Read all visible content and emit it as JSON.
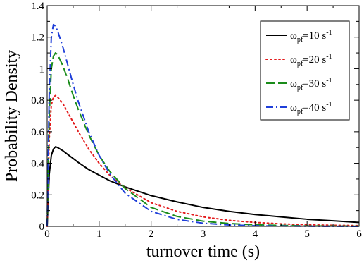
{
  "chart_data": {
    "type": "line",
    "title": "",
    "xlabel": "turnover time (s)",
    "ylabel": "Probability Density",
    "xlim": [
      0,
      6
    ],
    "ylim": [
      0,
      1.4
    ],
    "xticks": [
      0,
      1,
      2,
      3,
      4,
      5,
      6
    ],
    "xtick_labels": [
      "0",
      "1",
      "2",
      "3",
      "4",
      "5",
      "6"
    ],
    "yticks": [
      0,
      0.2,
      0.4,
      0.6,
      0.8,
      1.0,
      1.2,
      1.4
    ],
    "ytick_labels": [
      "0",
      "0.2",
      "0.4",
      "0.6",
      "0.8",
      "1",
      "1.2",
      "1.4"
    ],
    "grid": false,
    "legend_position": "top-right",
    "series": [
      {
        "name": "ω_pf=10 s^-1",
        "legend": {
          "base": "ω",
          "sub": "pf",
          "rest": "=10 s",
          "sup": "-1"
        },
        "color": "#000000",
        "dash": "solid",
        "x": [
          0,
          0.04,
          0.08,
          0.12,
          0.16,
          0.2,
          0.3,
          0.4,
          0.5,
          0.6,
          0.8,
          1.0,
          1.2,
          1.5,
          2.0,
          2.5,
          3.0,
          3.5,
          4.0,
          4.5,
          5.0,
          5.5,
          6.0
        ],
        "y": [
          0,
          0.33,
          0.45,
          0.49,
          0.505,
          0.5,
          0.48,
          0.455,
          0.43,
          0.405,
          0.36,
          0.325,
          0.29,
          0.25,
          0.195,
          0.155,
          0.12,
          0.095,
          0.075,
          0.06,
          0.045,
          0.035,
          0.025
        ]
      },
      {
        "name": "ω_pf=20 s^-1",
        "legend": {
          "base": "ω",
          "sub": "pf",
          "rest": "=20 s",
          "sup": "-1"
        },
        "color": "#e31a1c",
        "dash": "dotted",
        "x": [
          0,
          0.04,
          0.08,
          0.12,
          0.16,
          0.2,
          0.3,
          0.4,
          0.5,
          0.6,
          0.8,
          1.0,
          1.2,
          1.5,
          2.0,
          2.5,
          3.0,
          3.5,
          4.0,
          4.5,
          5.0,
          5.5,
          6.0
        ],
        "y": [
          0,
          0.55,
          0.77,
          0.82,
          0.83,
          0.82,
          0.78,
          0.72,
          0.66,
          0.6,
          0.49,
          0.4,
          0.325,
          0.245,
          0.15,
          0.095,
          0.06,
          0.038,
          0.025,
          0.016,
          0.01,
          0.007,
          0.005
        ]
      },
      {
        "name": "ω_pf=30 s^-1",
        "legend": {
          "base": "ω",
          "sub": "pf",
          "rest": "=30 s",
          "sup": "-1"
        },
        "color": "#1a8c1a",
        "dash": "dashed",
        "x": [
          0,
          0.04,
          0.08,
          0.12,
          0.16,
          0.2,
          0.3,
          0.4,
          0.5,
          0.6,
          0.8,
          1.0,
          1.2,
          1.5,
          2.0,
          2.5,
          3.0,
          3.5,
          4.0,
          4.5,
          5.0,
          5.5,
          6.0
        ],
        "y": [
          0,
          0.7,
          1.0,
          1.08,
          1.1,
          1.09,
          1.02,
          0.93,
          0.83,
          0.74,
          0.58,
          0.45,
          0.35,
          0.24,
          0.12,
          0.063,
          0.033,
          0.018,
          0.01,
          0.006,
          0.003,
          0.002,
          0.001
        ]
      },
      {
        "name": "ω_pf=40 s^-1",
        "legend": {
          "base": "ω",
          "sub": "pf",
          "rest": "=40 s",
          "sup": "-1"
        },
        "color": "#1f3fd9",
        "dash": "dashdot",
        "x": [
          0,
          0.04,
          0.08,
          0.12,
          0.16,
          0.2,
          0.3,
          0.4,
          0.5,
          0.6,
          0.8,
          1.0,
          1.2,
          1.5,
          2.0,
          2.5,
          3.0,
          3.5,
          4.0,
          4.5,
          5.0,
          5.5,
          6.0
        ],
        "y": [
          0,
          0.85,
          1.2,
          1.28,
          1.27,
          1.24,
          1.14,
          1.02,
          0.9,
          0.79,
          0.6,
          0.45,
          0.335,
          0.21,
          0.095,
          0.044,
          0.02,
          0.009,
          0.004,
          0.002,
          0.001,
          0.0005,
          0.0002
        ]
      }
    ]
  }
}
